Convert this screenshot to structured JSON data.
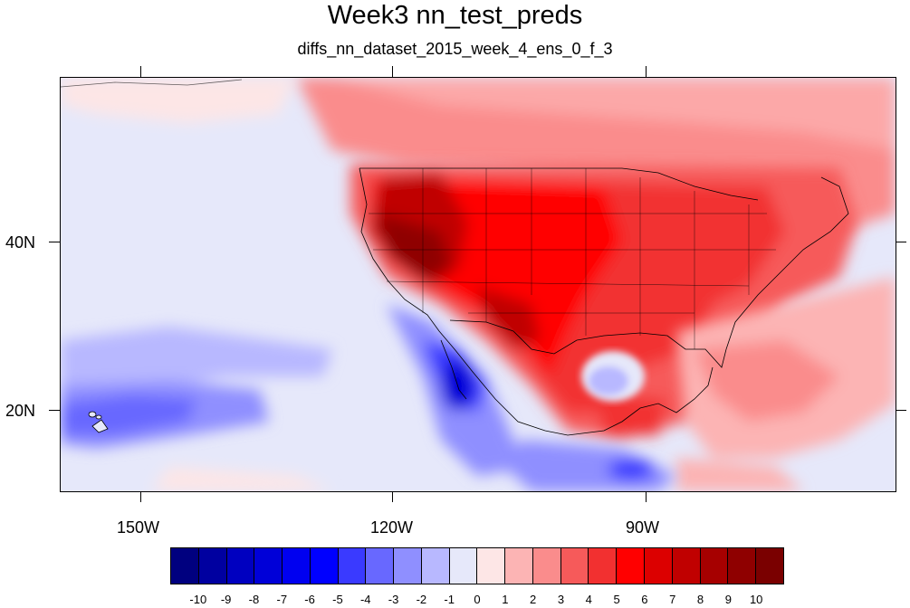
{
  "title": "Week3 nn_test_preds",
  "subtitle": "diffs_nn_dataset_2015_week_4_ens_0_f_3",
  "map": {
    "lon_labels": [
      "150W",
      "120W",
      "90W"
    ],
    "lat_labels": [
      "40N",
      "20N"
    ],
    "background_color": "#e6e8fa",
    "land_outline": "US states, Mexico, Canada coastlines"
  },
  "colorbar": {
    "labels": [
      "-10",
      "-9",
      "-8",
      "-7",
      "-6",
      "-5",
      "-4",
      "-3",
      "-2",
      "-1",
      "0",
      "1",
      "2",
      "3",
      "4",
      "5",
      "6",
      "7",
      "8",
      "9",
      "10"
    ],
    "colors": [
      "#00007f",
      "#0000a0",
      "#0000c0",
      "#0000d8",
      "#0000f0",
      "#0000ff",
      "#3a3aff",
      "#6868ff",
      "#8f8fff",
      "#b8b8ff",
      "#e6e8fa",
      "#fde6e6",
      "#fcb4b4",
      "#fa8c8c",
      "#f65a5a",
      "#f23030",
      "#ff0000",
      "#dc0000",
      "#c00000",
      "#a60000",
      "#8f0000",
      "#7a0000"
    ]
  }
}
